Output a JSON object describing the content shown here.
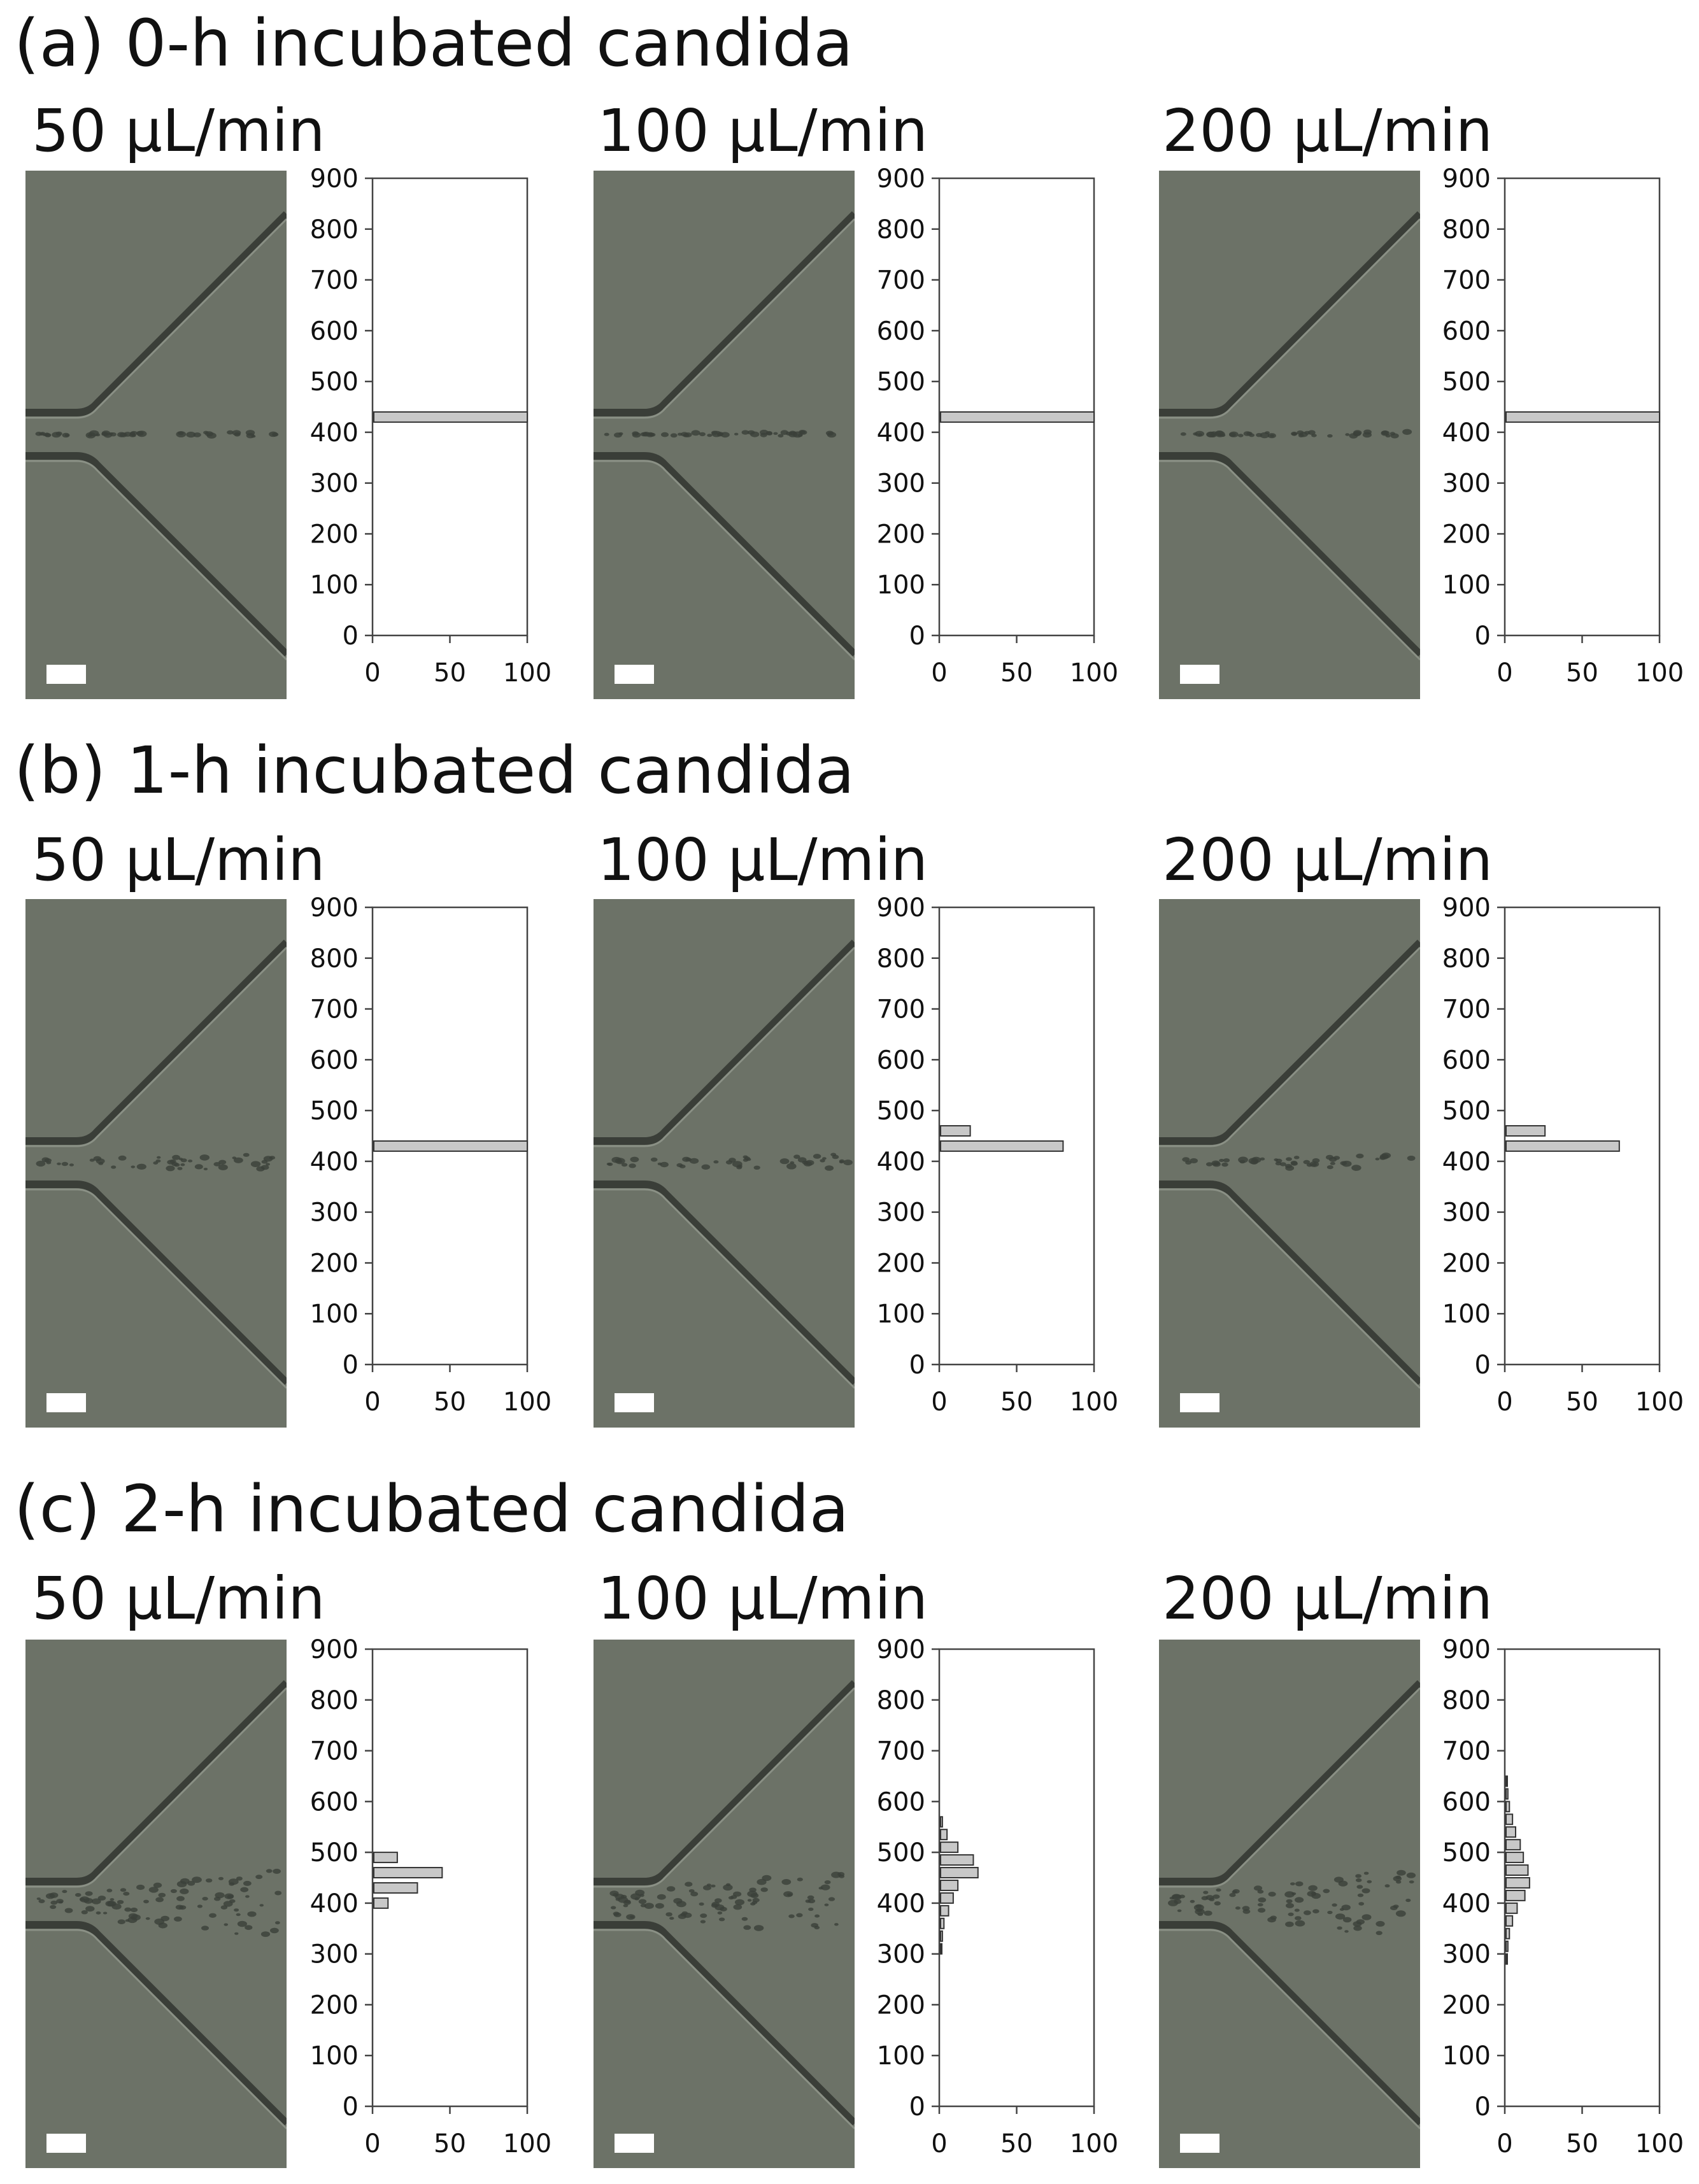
{
  "sections": [
    {
      "title": "(a) 0-h incubated candida"
    },
    {
      "title": "(b) 1-h incubated candida"
    },
    {
      "title": "(c) 2-h incubated candida"
    }
  ],
  "flow_rates": [
    "50 μL/min",
    "100 μL/min",
    "200 μL/min"
  ],
  "chart_data": [
    {
      "type": "bar",
      "orientation": "horizontal",
      "panel": "a-50",
      "bins": [
        430
      ],
      "values": [
        100
      ],
      "ylim": [
        0,
        900
      ],
      "xlim": [
        0,
        100
      ],
      "yticks": [
        "0",
        "100",
        "200",
        "300",
        "400",
        "500",
        "600",
        "700",
        "800",
        "900"
      ],
      "xticks": [
        "0",
        "50",
        "100"
      ]
    },
    {
      "type": "bar",
      "orientation": "horizontal",
      "panel": "a-100",
      "bins": [
        430
      ],
      "values": [
        100
      ],
      "ylim": [
        0,
        900
      ],
      "xlim": [
        0,
        100
      ],
      "yticks": [
        "0",
        "100",
        "200",
        "300",
        "400",
        "500",
        "600",
        "700",
        "800",
        "900"
      ],
      "xticks": [
        "0",
        "50",
        "100"
      ]
    },
    {
      "type": "bar",
      "orientation": "horizontal",
      "panel": "a-200",
      "bins": [
        430
      ],
      "values": [
        100
      ],
      "ylim": [
        0,
        900
      ],
      "xlim": [
        0,
        100
      ],
      "yticks": [
        "0",
        "100",
        "200",
        "300",
        "400",
        "500",
        "600",
        "700",
        "800",
        "900"
      ],
      "xticks": [
        "0",
        "50",
        "100"
      ]
    },
    {
      "type": "bar",
      "orientation": "horizontal",
      "panel": "b-50",
      "bins": [
        430
      ],
      "values": [
        100
      ],
      "ylim": [
        0,
        900
      ],
      "xlim": [
        0,
        100
      ],
      "yticks": [
        "0",
        "100",
        "200",
        "300",
        "400",
        "500",
        "600",
        "700",
        "800",
        "900"
      ],
      "xticks": [
        "0",
        "50",
        "100"
      ]
    },
    {
      "type": "bar",
      "orientation": "horizontal",
      "panel": "b-100",
      "bins": [
        460,
        430
      ],
      "values": [
        20,
        80
      ],
      "ylim": [
        0,
        900
      ],
      "xlim": [
        0,
        100
      ],
      "yticks": [
        "0",
        "100",
        "200",
        "300",
        "400",
        "500",
        "600",
        "700",
        "800",
        "900"
      ],
      "xticks": [
        "0",
        "50",
        "100"
      ]
    },
    {
      "type": "bar",
      "orientation": "horizontal",
      "panel": "b-200",
      "bins": [
        460,
        430
      ],
      "values": [
        26,
        74
      ],
      "ylim": [
        0,
        900
      ],
      "xlim": [
        0,
        100
      ],
      "yticks": [
        "0",
        "100",
        "200",
        "300",
        "400",
        "500",
        "600",
        "700",
        "800",
        "900"
      ],
      "xticks": [
        "0",
        "50",
        "100"
      ]
    },
    {
      "type": "bar",
      "orientation": "horizontal",
      "panel": "c-50",
      "bins": [
        490,
        460,
        430,
        400
      ],
      "values": [
        16,
        45,
        29,
        10
      ],
      "ylim": [
        0,
        900
      ],
      "xlim": [
        0,
        100
      ],
      "yticks": [
        "0",
        "100",
        "200",
        "300",
        "400",
        "500",
        "600",
        "700",
        "800",
        "900"
      ],
      "xticks": [
        "0",
        "50",
        "100"
      ]
    },
    {
      "type": "bar",
      "orientation": "horizontal",
      "panel": "c-100",
      "bins": [
        560,
        535,
        510,
        485,
        460,
        435,
        410,
        385,
        360,
        335,
        310
      ],
      "values": [
        2,
        5,
        12,
        22,
        25,
        12,
        9,
        6,
        3,
        2,
        1
      ],
      "ylim": [
        0,
        900
      ],
      "xlim": [
        0,
        100
      ],
      "yticks": [
        "0",
        "100",
        "200",
        "300",
        "400",
        "500",
        "600",
        "700",
        "800",
        "900"
      ],
      "xticks": [
        "0",
        "50",
        "100"
      ]
    },
    {
      "type": "bar",
      "orientation": "horizontal",
      "panel": "c-200",
      "bins": [
        640,
        615,
        590,
        565,
        540,
        515,
        490,
        465,
        440,
        415,
        390,
        365,
        340,
        315,
        290
      ],
      "values": [
        1,
        2,
        3,
        5,
        7,
        10,
        12,
        15,
        16,
        13,
        8,
        5,
        3,
        2,
        1
      ],
      "ylim": [
        0,
        900
      ],
      "xlim": [
        0,
        100
      ],
      "yticks": [
        "0",
        "100",
        "200",
        "300",
        "400",
        "500",
        "600",
        "700",
        "800",
        "900"
      ],
      "xticks": [
        "0",
        "50",
        "100"
      ]
    }
  ]
}
